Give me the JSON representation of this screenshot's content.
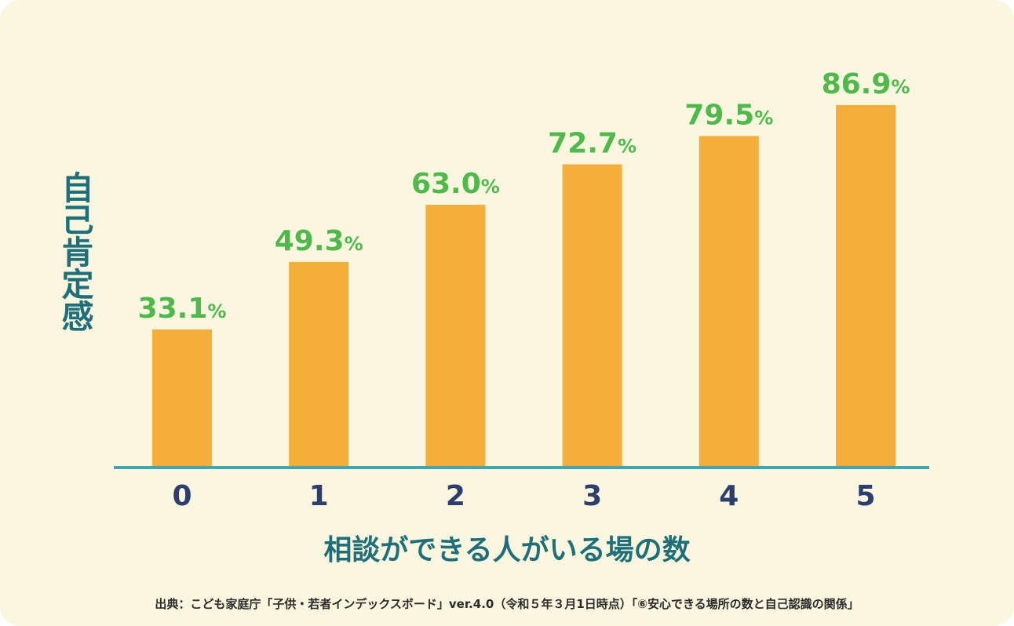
{
  "chart_data": {
    "type": "bar",
    "categories": [
      "0",
      "1",
      "2",
      "3",
      "4",
      "5"
    ],
    "values": [
      33.1,
      49.3,
      63.0,
      72.7,
      79.5,
      86.9
    ],
    "value_labels": [
      "33.1",
      "49.3",
      "63.0",
      "72.7",
      "79.5",
      "86.9"
    ],
    "unit": "%",
    "ylabel": "自己肯定感",
    "xlabel": "相談ができる人がいる場の数",
    "ylim": [
      0,
      100
    ],
    "grid": false,
    "colors": {
      "bar": "#f5ae3a",
      "value_label": "#4fba4b",
      "baseline": "#3aa9b5",
      "tick_label": "#2c3e6b",
      "axis_title": "#1f6f7a"
    }
  },
  "source": "出典：こども家庭庁「子供・若者インデックスボード」ver.4.0（令和５年３月1日時点）「⑥安心できる場所の数と自己認識の関係」"
}
